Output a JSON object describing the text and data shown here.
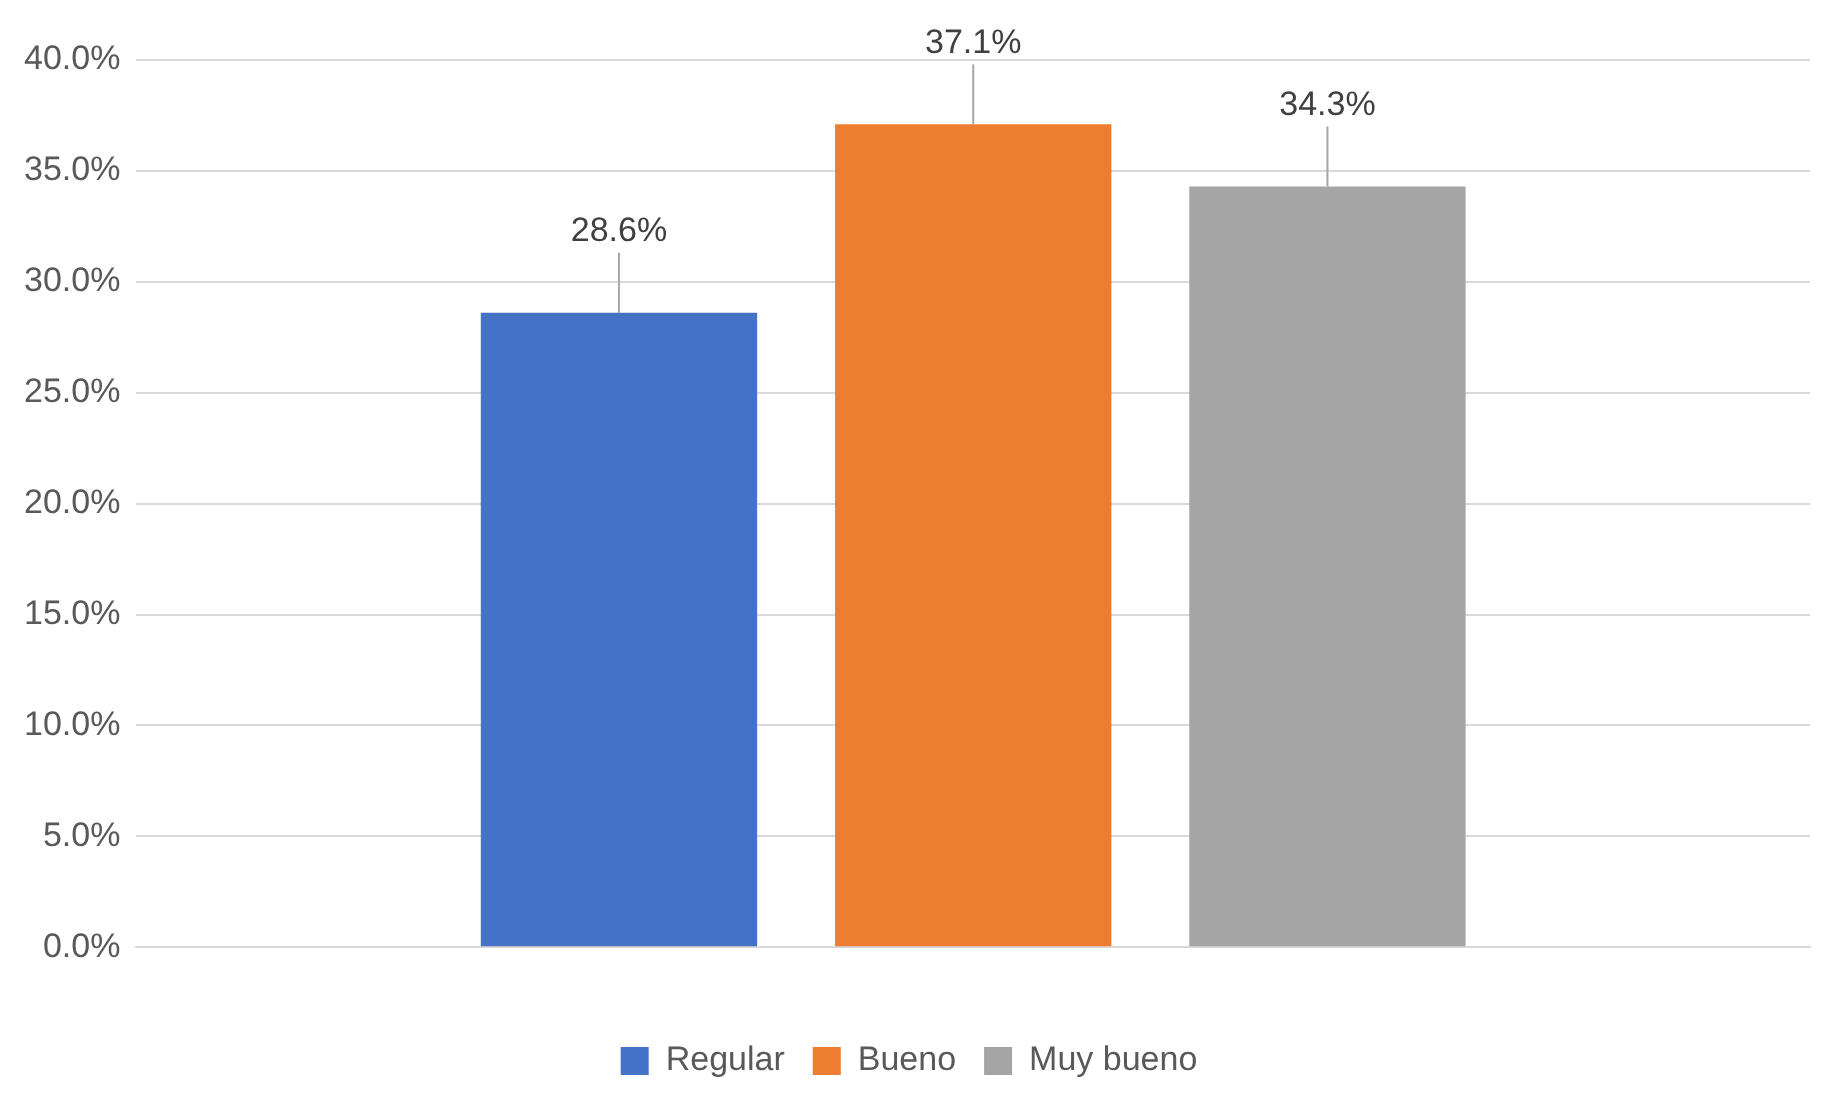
{
  "chart_data": {
    "type": "bar",
    "categories": [
      null
    ],
    "series": [
      {
        "name": "Regular",
        "color": "#4472c4",
        "values": [
          28.6
        ],
        "value_labels": [
          "28.6%"
        ]
      },
      {
        "name": "Bueno",
        "color": "#ed7d31",
        "values": [
          37.1
        ],
        "value_labels": [
          "37.1%"
        ]
      },
      {
        "name": "Muy bueno",
        "color": "#a5a5a5",
        "values": [
          34.3
        ],
        "value_labels": [
          "34.3%"
        ]
      }
    ],
    "ylim": [
      0,
      40
    ],
    "yticks": [
      {
        "value": 0,
        "label": "0.0%"
      },
      {
        "value": 5,
        "label": "5.0%"
      },
      {
        "value": 10,
        "label": "10.0%"
      },
      {
        "value": 15,
        "label": "15.0%"
      },
      {
        "value": 20,
        "label": "20.0%"
      },
      {
        "value": 25,
        "label": "25.0%"
      },
      {
        "value": 30,
        "label": "30.0%"
      },
      {
        "value": 35,
        "label": "35.0%"
      },
      {
        "value": 40,
        "label": "40.0%"
      }
    ],
    "grid": "y",
    "legend": "bottom"
  }
}
